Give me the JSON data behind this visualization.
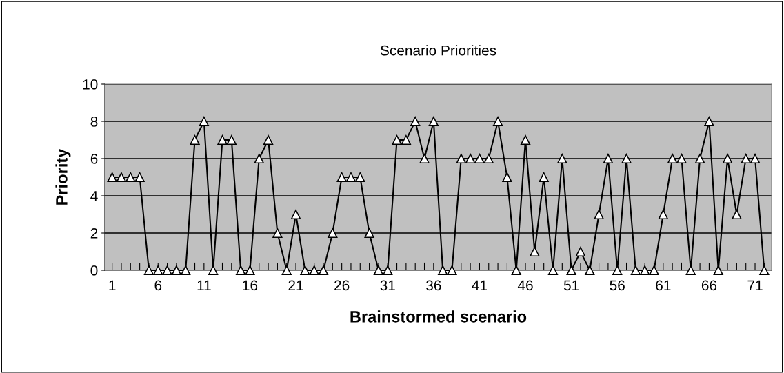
{
  "chart_data": {
    "type": "line",
    "title": "Scenario Priorities",
    "xlabel": "Brainstormed scenario",
    "ylabel": "Priority",
    "categories": [
      "1",
      null,
      null,
      null,
      null,
      "6",
      null,
      null,
      null,
      null,
      "11",
      null,
      null,
      null,
      null,
      "16",
      null,
      null,
      null,
      null,
      "21",
      null,
      null,
      null,
      null,
      "26",
      null,
      null,
      null,
      null,
      "31",
      null,
      null,
      null,
      null,
      "36",
      null,
      null,
      null,
      null,
      "41",
      null,
      null,
      null,
      null,
      "46",
      null,
      null,
      null,
      null,
      "51",
      null,
      null,
      null,
      null,
      "56",
      null,
      null,
      null,
      null,
      "61",
      null,
      null,
      null,
      null,
      "66",
      null,
      null,
      null,
      null,
      "71",
      null
    ],
    "series": [
      {
        "color": "#000000",
        "values": [
          5,
          5,
          5,
          5,
          0,
          0,
          0,
          0,
          0,
          7,
          8,
          0,
          7,
          7,
          0,
          0,
          6,
          7,
          2,
          0,
          3,
          0,
          0,
          0,
          2,
          5,
          5,
          5,
          2,
          0,
          0,
          7,
          7,
          8,
          6,
          8,
          0,
          0,
          6,
          6,
          6,
          6,
          8,
          5,
          0,
          7,
          1,
          5,
          0,
          6,
          0,
          1,
          0,
          3,
          6,
          0,
          6,
          0,
          0,
          0,
          3,
          6,
          6,
          0,
          6,
          8,
          0,
          6,
          3,
          6,
          6,
          0
        ]
      }
    ],
    "ylim": [
      0,
      10
    ],
    "yticks": [
      0,
      2,
      4,
      6,
      8,
      10
    ],
    "grid": "y",
    "marker": "triangle",
    "line_style": "solid"
  }
}
